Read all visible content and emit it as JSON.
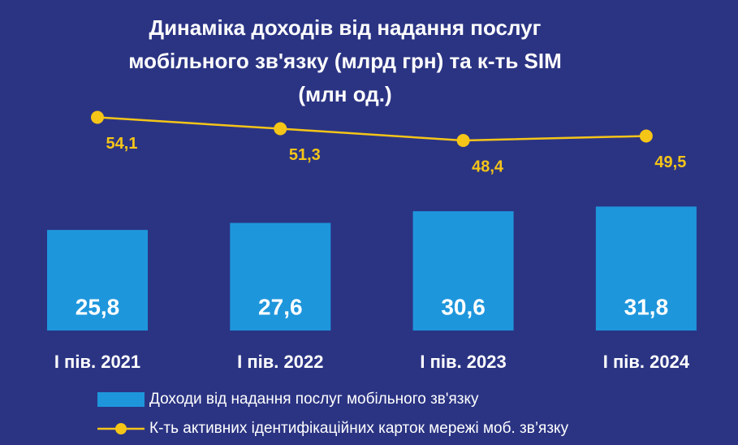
{
  "chart_data": {
    "type": "bar_line",
    "title": "Динаміка доходів від надання послуг мобільного зв'язку (млрд грн) та к-ть SIM (млн од.)",
    "categories": [
      "I пів. 2021",
      "I пів. 2022",
      "I пів. 2023",
      "I пів. 2024"
    ],
    "series": [
      {
        "name": "Доходи від надання послуг мобільного зв'язку",
        "type": "bar",
        "color": "#1e96dc",
        "values": [
          25.8,
          27.6,
          30.6,
          31.8
        ],
        "value_labels": [
          "25,8",
          "27,6",
          "30,6",
          "31,8"
        ]
      },
      {
        "name": "К-ть активних ідентифікаційних карток мережі моб. зв’язку",
        "type": "line",
        "color": "#f5c518",
        "values": [
          54.1,
          51.3,
          48.4,
          49.5
        ],
        "value_labels": [
          "54,1",
          "51,3",
          "48,4",
          "49,5"
        ]
      }
    ]
  }
}
